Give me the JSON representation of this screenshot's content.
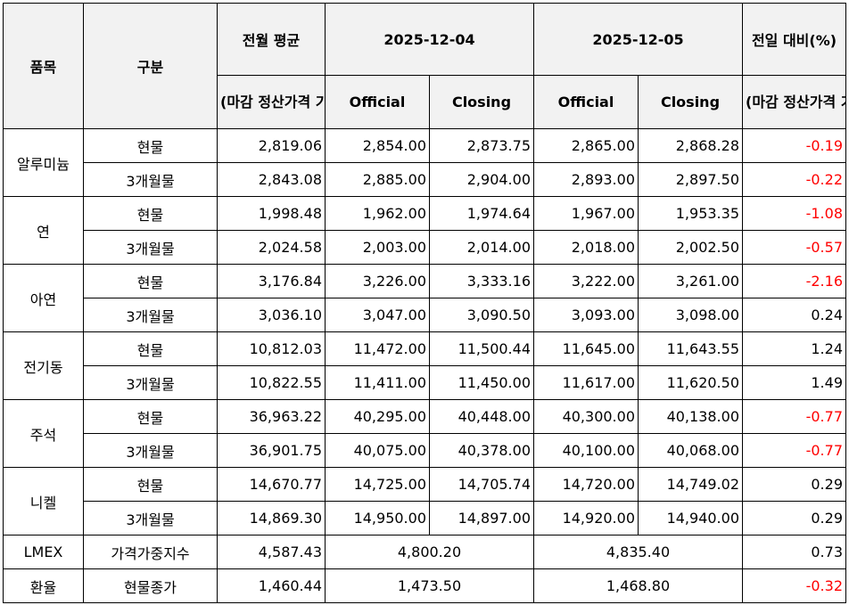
{
  "headers": {
    "item": "품목",
    "category": "구분",
    "prev_month_avg": "전월 평균",
    "prev_month_basis": "(마감 정산가격 기준)",
    "date1": "2025-12-04",
    "date2": "2025-12-05",
    "official": "Official",
    "closing": "Closing",
    "day_change": "전일 대비(%)",
    "day_change_basis": "(마감 정산가격 기준)"
  },
  "groups": [
    {
      "item": "알루미늄",
      "rows": [
        {
          "category": "현물",
          "avg": "2,819.06",
          "d1_official": "2,854.00",
          "d1_closing": "2,873.75",
          "d2_official": "2,865.00",
          "d2_closing": "2,868.28",
          "change": "-0.19"
        },
        {
          "category": "3개월물",
          "avg": "2,843.08",
          "d1_official": "2,885.00",
          "d1_closing": "2,904.00",
          "d2_official": "2,893.00",
          "d2_closing": "2,897.50",
          "change": "-0.22"
        }
      ]
    },
    {
      "item": "연",
      "rows": [
        {
          "category": "현물",
          "avg": "1,998.48",
          "d1_official": "1,962.00",
          "d1_closing": "1,974.64",
          "d2_official": "1,967.00",
          "d2_closing": "1,953.35",
          "change": "-1.08"
        },
        {
          "category": "3개월물",
          "avg": "2,024.58",
          "d1_official": "2,003.00",
          "d1_closing": "2,014.00",
          "d2_official": "2,018.00",
          "d2_closing": "2,002.50",
          "change": "-0.57"
        }
      ]
    },
    {
      "item": "아연",
      "rows": [
        {
          "category": "현물",
          "avg": "3,176.84",
          "d1_official": "3,226.00",
          "d1_closing": "3,333.16",
          "d2_official": "3,222.00",
          "d2_closing": "3,261.00",
          "change": "-2.16"
        },
        {
          "category": "3개월물",
          "avg": "3,036.10",
          "d1_official": "3,047.00",
          "d1_closing": "3,090.50",
          "d2_official": "3,093.00",
          "d2_closing": "3,098.00",
          "change": "0.24"
        }
      ]
    },
    {
      "item": "전기동",
      "rows": [
        {
          "category": "현물",
          "avg": "10,812.03",
          "d1_official": "11,472.00",
          "d1_closing": "11,500.44",
          "d2_official": "11,645.00",
          "d2_closing": "11,643.55",
          "change": "1.24"
        },
        {
          "category": "3개월물",
          "avg": "10,822.55",
          "d1_official": "11,411.00",
          "d1_closing": "11,450.00",
          "d2_official": "11,617.00",
          "d2_closing": "11,620.50",
          "change": "1.49"
        }
      ]
    },
    {
      "item": "주석",
      "rows": [
        {
          "category": "현물",
          "avg": "36,963.22",
          "d1_official": "40,295.00",
          "d1_closing": "40,448.00",
          "d2_official": "40,300.00",
          "d2_closing": "40,138.00",
          "change": "-0.77"
        },
        {
          "category": "3개월물",
          "avg": "36,901.75",
          "d1_official": "40,075.00",
          "d1_closing": "40,378.00",
          "d2_official": "40,100.00",
          "d2_closing": "40,068.00",
          "change": "-0.77"
        }
      ]
    },
    {
      "item": "니켈",
      "rows": [
        {
          "category": "현물",
          "avg": "14,670.77",
          "d1_official": "14,725.00",
          "d1_closing": "14,705.74",
          "d2_official": "14,720.00",
          "d2_closing": "14,749.02",
          "change": "0.29"
        },
        {
          "category": "3개월물",
          "avg": "14,869.30",
          "d1_official": "14,950.00",
          "d1_closing": "14,897.00",
          "d2_official": "14,920.00",
          "d2_closing": "14,940.00",
          "change": "0.29"
        }
      ]
    }
  ],
  "lmex": {
    "item": "LMEX",
    "category": "가격가중지수",
    "avg": "4,587.43",
    "d1": "4,800.20",
    "d2": "4,835.40",
    "change": "0.73"
  },
  "fx": {
    "item": "환율",
    "category": "현물종가",
    "avg": "1,460.44",
    "d1": "1,473.50",
    "d2": "1,468.80",
    "change": "-0.32"
  },
  "colors": {
    "negative": "#ff0000",
    "header_bg": "#f2f2f2",
    "border": "#000000"
  }
}
